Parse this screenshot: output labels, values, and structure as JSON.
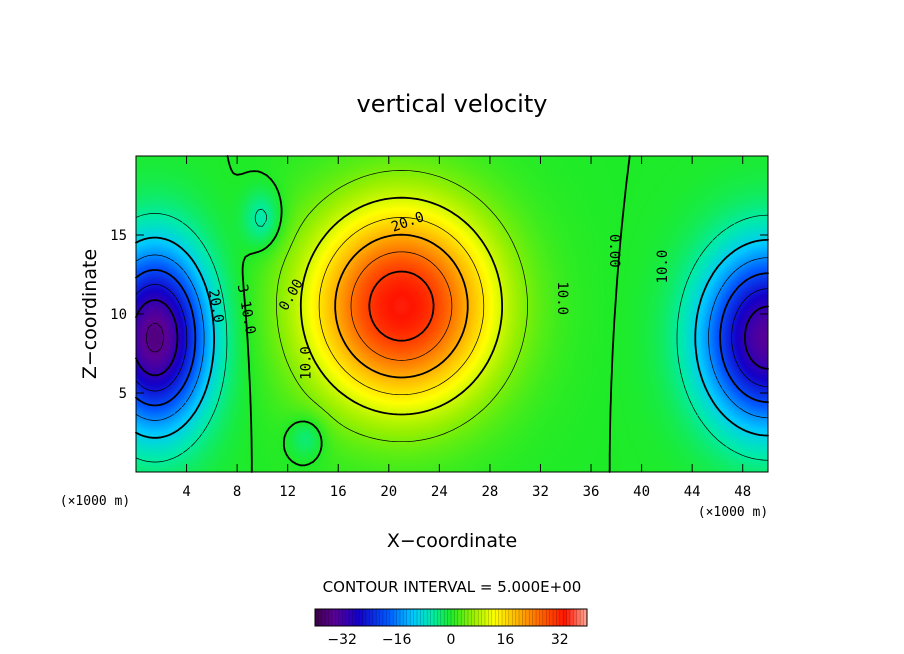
{
  "chart_data": {
    "type": "heatmap",
    "title": "vertical velocity",
    "xlabel": "X−coordinate",
    "ylabel": "Z−coordinate",
    "x_unit_left": "(×1000 m)",
    "x_unit_right": "(×1000 m)",
    "xlim": [
      0,
      50
    ],
    "ylim": [
      0,
      20
    ],
    "x_ticks": [
      4,
      8,
      12,
      16,
      20,
      24,
      28,
      32,
      36,
      40,
      44,
      48
    ],
    "y_ticks": [
      5,
      10,
      15
    ],
    "contour_interval_text": "CONTOUR INTERVAL = 5.000E+00",
    "contour_interval": 5.0,
    "colorbar": {
      "min": -40,
      "max": 40,
      "ticks": [
        -32,
        -16,
        0,
        16,
        32
      ]
    },
    "features": [
      {
        "name": "updraft",
        "x": 21,
        "z": 10.5,
        "peak": 34
      },
      {
        "name": "downdraft-left",
        "x": 1.5,
        "z": 8.5,
        "peak": -36
      },
      {
        "name": "downdraft-right",
        "x": 50,
        "z": 8.5,
        "peak": -34
      }
    ],
    "contour_labels": [
      {
        "text": "20.0",
        "x": 21.5,
        "z": 15.8,
        "angle": -20
      },
      {
        "text": "10.0",
        "x": 33.7,
        "z": 11.0,
        "angle": 90
      },
      {
        "text": "0.00",
        "x": 37.8,
        "z": 14.0,
        "angle": 90
      },
      {
        "text": "10.0",
        "x": 41.7,
        "z": 13.0,
        "angle": -90
      },
      {
        "text": "0.00",
        "x": 12.3,
        "z": 11.2,
        "angle": -60
      },
      {
        "text": "10.0",
        "x": 13.5,
        "z": 6.9,
        "angle": -90
      },
      {
        "text": "20.0",
        "x": 6.3,
        "z": 10.5,
        "angle": 80
      },
      {
        "text": "3−10.0",
        "x": 8.7,
        "z": 10.3,
        "angle": 80
      }
    ]
  }
}
